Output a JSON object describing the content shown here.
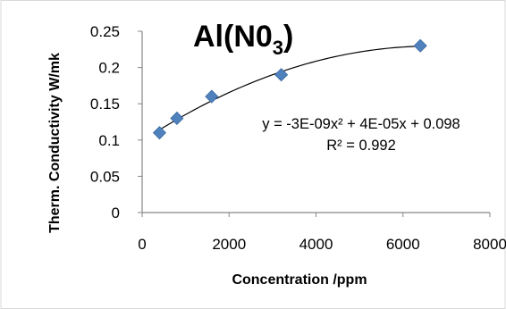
{
  "chart_data": {
    "type": "scatter",
    "title_main": "Al(N0",
    "title_sub": "3",
    "title_close": ")",
    "xlabel": "Concentration  /ppm",
    "ylabel": "Therm. Conductivity  W/mk",
    "xlim": [
      0,
      8000
    ],
    "ylim": [
      0,
      0.25
    ],
    "x_ticks": [
      "0",
      "2000",
      "4000",
      "6000",
      "8000"
    ],
    "y_ticks": [
      "0",
      "0.05",
      "0.1",
      "0.15",
      "0.2",
      "0.25"
    ],
    "grid": false,
    "legend": "none",
    "points": [
      {
        "x": 400,
        "y": 0.11
      },
      {
        "x": 800,
        "y": 0.13
      },
      {
        "x": 1600,
        "y": 0.16
      },
      {
        "x": 3200,
        "y": 0.19
      },
      {
        "x": 6400,
        "y": 0.23
      }
    ],
    "trendline": {
      "type": "polynomial",
      "order": 2,
      "equation": "y = -3E-09x² + 4E-05x + 0.098",
      "r_squared": "R² = 0.992"
    },
    "marker_color": "#4f81bd",
    "trendline_color": "#000000"
  }
}
